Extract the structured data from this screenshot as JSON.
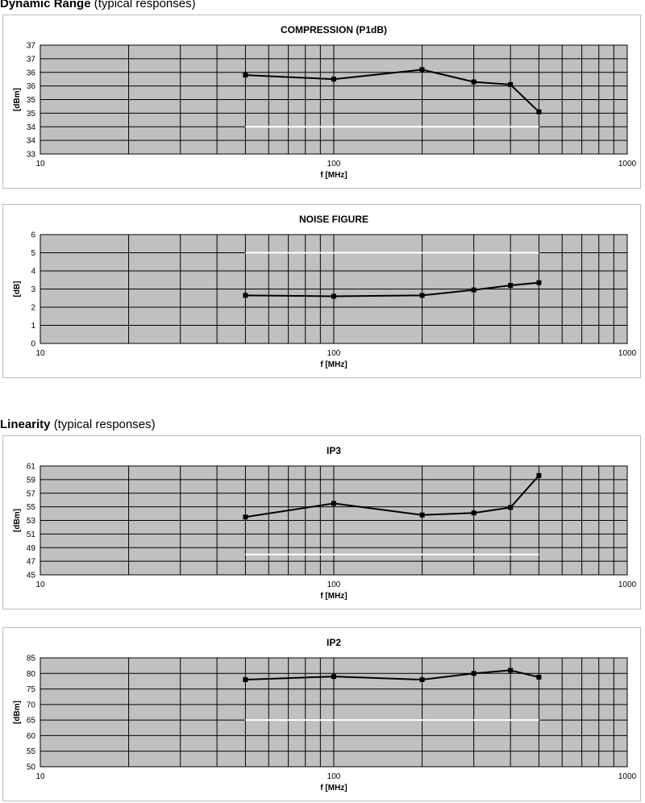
{
  "sections": [
    {
      "heading_bold": "Dynamic Range",
      "heading_rest": " (typical responses)"
    },
    {
      "heading_bold": "Linearity",
      "heading_rest": " (typical responses)"
    }
  ],
  "chart_data": [
    {
      "type": "line",
      "title": "COMPRESSION (P1dB)",
      "xlabel": "f [MHz]",
      "ylabel": "[dBm]",
      "x_scale": "log",
      "xlim": [
        10,
        1000
      ],
      "x_ticks": [
        "10",
        "100",
        "1000"
      ],
      "ylim": [
        33,
        37
      ],
      "y_tick_labels": [
        "33",
        "34",
        "34",
        "35",
        "35",
        "36",
        "36",
        "37",
        "37"
      ],
      "grid": true,
      "series": [
        {
          "x": [
            50,
            100,
            200,
            300,
            400,
            500
          ],
          "y": [
            35.9,
            35.75,
            36.1,
            35.65,
            35.55,
            34.55
          ],
          "color": "#000000"
        },
        {
          "x": [
            50,
            500
          ],
          "y": [
            34,
            34
          ],
          "color": "#ffffff"
        }
      ]
    },
    {
      "type": "line",
      "title": "NOISE FIGURE",
      "xlabel": "f [MHz]",
      "ylabel": "[dB]",
      "x_scale": "log",
      "xlim": [
        10,
        1000
      ],
      "x_ticks": [
        "10",
        "100",
        "1000"
      ],
      "ylim": [
        0,
        6
      ],
      "y_tick_labels": [
        "0",
        "1",
        "2",
        "3",
        "4",
        "5",
        "6"
      ],
      "grid": true,
      "series": [
        {
          "x": [
            50,
            100,
            200,
            300,
            400,
            500
          ],
          "y": [
            2.65,
            2.6,
            2.65,
            2.95,
            3.2,
            3.35
          ],
          "color": "#000000"
        },
        {
          "x": [
            50,
            500
          ],
          "y": [
            5,
            5
          ],
          "color": "#ffffff"
        }
      ]
    },
    {
      "type": "line",
      "title": "IP3",
      "xlabel": "f [MHz]",
      "ylabel": "[dBm]",
      "x_scale": "log",
      "xlim": [
        10,
        1000
      ],
      "x_ticks": [
        "10",
        "100",
        "1000"
      ],
      "ylim": [
        45,
        61
      ],
      "y_tick_labels": [
        "45",
        "47",
        "49",
        "51",
        "53",
        "55",
        "57",
        "59",
        "61"
      ],
      "grid": true,
      "series": [
        {
          "x": [
            50,
            100,
            200,
            300,
            400,
            500
          ],
          "y": [
            53.5,
            55.5,
            53.8,
            54.1,
            54.9,
            59.6
          ],
          "color": "#000000"
        },
        {
          "x": [
            50,
            500
          ],
          "y": [
            48,
            48
          ],
          "color": "#ffffff"
        }
      ]
    },
    {
      "type": "line",
      "title": "IP2",
      "xlabel": "f [MHz]",
      "ylabel": "[dBm]",
      "x_scale": "log",
      "xlim": [
        10,
        1000
      ],
      "x_ticks": [
        "10",
        "100",
        "1000"
      ],
      "ylim": [
        50,
        85
      ],
      "y_tick_labels": [
        "50",
        "55",
        "60",
        "65",
        "70",
        "75",
        "80",
        "85"
      ],
      "grid": true,
      "series": [
        {
          "x": [
            50,
            100,
            200,
            300,
            400,
            500
          ],
          "y": [
            78,
            79,
            78,
            80,
            81,
            78.8
          ],
          "color": "#000000"
        },
        {
          "x": [
            50,
            500
          ],
          "y": [
            65,
            65
          ],
          "color": "#ffffff"
        }
      ]
    }
  ]
}
